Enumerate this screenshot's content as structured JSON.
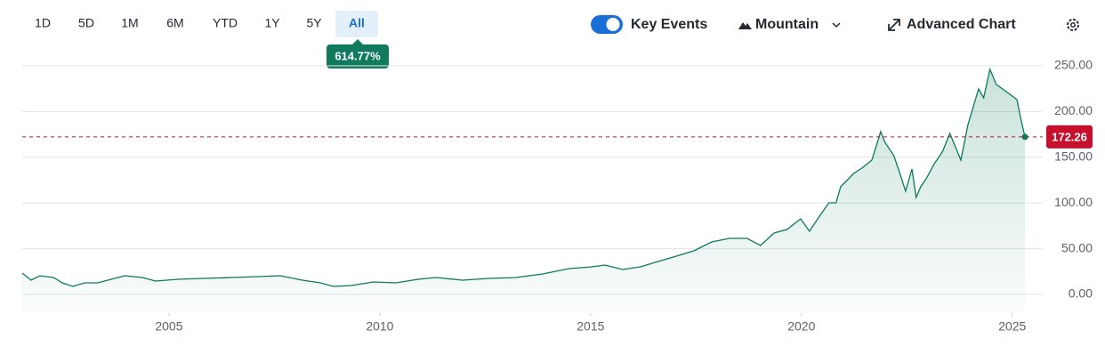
{
  "toolbar": {
    "ranges": [
      "1D",
      "5D",
      "1M",
      "6M",
      "YTD",
      "1Y",
      "5Y",
      "All"
    ],
    "change_badge": "614.77%",
    "key_events": "Key Events",
    "chart_style": "Mountain",
    "advanced_chart": "Advanced Chart"
  },
  "chart_data": {
    "type": "line",
    "x": [
      2001.52,
      2001.73,
      2001.94,
      2002.26,
      2002.47,
      2002.72,
      2003.0,
      2003.31,
      2003.63,
      2003.95,
      2004.37,
      2004.68,
      2005.21,
      2005.84,
      2006.48,
      2007.11,
      2007.64,
      2008.16,
      2008.59,
      2008.9,
      2009.32,
      2009.85,
      2010.38,
      2010.91,
      2011.33,
      2011.96,
      2012.59,
      2013.23,
      2013.86,
      2014.49,
      2015.02,
      2015.34,
      2015.76,
      2016.18,
      2016.6,
      2017.03,
      2017.45,
      2017.87,
      2018.29,
      2018.71,
      2019.03,
      2019.35,
      2019.66,
      2019.98,
      2020.19,
      2020.4,
      2020.65,
      2020.82,
      2020.93,
      2021.24,
      2021.46,
      2021.67,
      2021.88,
      2021.98,
      2022.19,
      2022.3,
      2022.47,
      2022.62,
      2022.72,
      2022.83,
      2022.97,
      2023.14,
      2023.35,
      2023.52,
      2023.78,
      2023.95,
      2024.2,
      2024.32,
      2024.47,
      2024.62,
      2024.83,
      2025.0,
      2025.11,
      2025.21,
      2025.3
    ],
    "series": [
      {
        "color": "#0b7a5b",
        "values": [
          23.3,
          15.6,
          20.4,
          18.5,
          12.6,
          8.8,
          12.6,
          12.6,
          16.5,
          20.4,
          18.5,
          14.6,
          16.5,
          17.5,
          18.5,
          19.5,
          20.4,
          15.6,
          12.6,
          8.8,
          9.7,
          13.6,
          12.6,
          16.5,
          18.5,
          15.6,
          17.5,
          18.5,
          22.4,
          28.2,
          30.2,
          32.1,
          27.2,
          30.2,
          36.0,
          41.8,
          47.7,
          57.4,
          61.3,
          61.3,
          53.5,
          67.1,
          71.0,
          82.7,
          69.1,
          83.7,
          100.2,
          100.2,
          117.7,
          132.3,
          139.1,
          146.9,
          178.0,
          166.3,
          151.8,
          137.2,
          112.8,
          137.2,
          106.0,
          117.7,
          127.4,
          142.0,
          156.6,
          176.1,
          146.9,
          185.8,
          224.7,
          215.0,
          246.1,
          229.6,
          222.8,
          216.9,
          213.0,
          190.7,
          172.26
        ]
      }
    ],
    "current_price": 172.26,
    "current_price_color": "#c8102e",
    "xlim": [
      2001.52,
      2025.3
    ],
    "xticks": [
      2005,
      2010,
      2015,
      2020,
      2025
    ],
    "ylim": [
      -20,
      270
    ],
    "yticks": [
      {
        "value": 0,
        "label": "0.00"
      },
      {
        "value": 50,
        "label": "50.00"
      },
      {
        "value": 100,
        "label": "100.00"
      },
      {
        "value": 150,
        "label": "150.00"
      },
      {
        "value": 200,
        "label": "200.00"
      },
      {
        "value": 250,
        "label": "250.00"
      }
    ],
    "grid": true
  }
}
